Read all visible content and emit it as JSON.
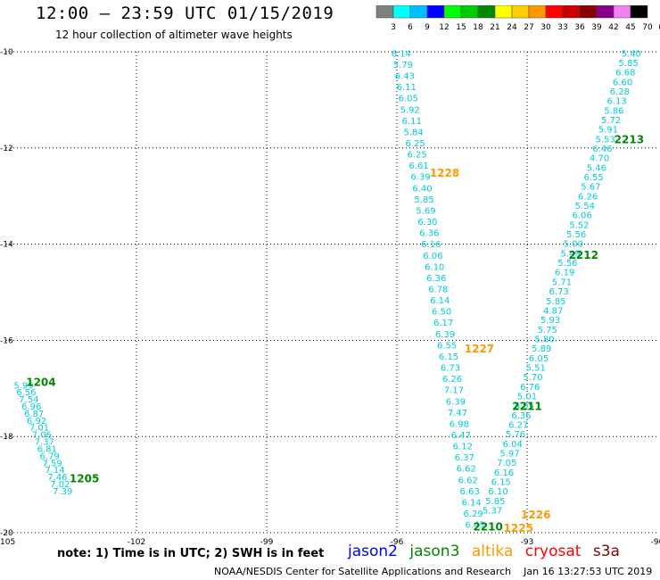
{
  "header": {
    "title": "12:00 – 23:59 UTC 01/15/2019",
    "subtitle": "12 hour collection of altimeter wave heights"
  },
  "colorbar": {
    "labels": [
      "3",
      "6",
      "9",
      "12",
      "15",
      "18",
      "21",
      "24",
      "27",
      "30",
      "33",
      "36",
      "39",
      "42",
      "45",
      "70",
      "(ft)"
    ],
    "colors": [
      "#808080",
      "#00ffff",
      "#00bfff",
      "#0000ff",
      "#00ff00",
      "#00cc00",
      "#008800",
      "#ffff00",
      "#ffcc00",
      "#ff9900",
      "#ff0000",
      "#cc0000",
      "#880000",
      "#880088",
      "#ee82ee",
      "#000000"
    ]
  },
  "footer": {
    "note": "note: 1) Time is in UTC; 2) SWH is in feet",
    "legend": [
      {
        "label": "jason2",
        "color": "#0000ff"
      },
      {
        "label": "jason3",
        "color": "#008800"
      },
      {
        "label": "altika",
        "color": "#ff9900"
      },
      {
        "label": "cryosat",
        "color": "#ff0000"
      },
      {
        "label": "s3a",
        "color": "#880000"
      }
    ],
    "credit": "NOAA/NESDIS Center for Satellite Applications and Research",
    "credit_date": "Jan 16 13:27:53 UTC 2019"
  },
  "chart_data": {
    "type": "scatter",
    "title": "12:00 – 23:59 UTC 01/15/2019",
    "subtitle": "12 hour collection of altimeter wave heights",
    "xlim": [
      -105,
      -90
    ],
    "ylim": [
      -20,
      -10
    ],
    "xticks": [
      -105,
      -102,
      -99,
      -96,
      -93,
      -90
    ],
    "yticks": [
      -20,
      -18,
      -16,
      -14,
      -12,
      -10
    ],
    "grid": true,
    "value_color": "#00ccdd",
    "time_color_jason3": "#008800",
    "time_color_altika": "#ff9900",
    "tracks": [
      {
        "name": "track-west",
        "satellite": "jason3",
        "lon_start": -104.6,
        "lat_start": -17.0,
        "lon_end": -103.7,
        "lat_end": -19.2,
        "values": [
          "5.99",
          "6.56",
          "7.54",
          "6.96",
          "6.87",
          "6.92",
          "7.01",
          "7.06",
          "7.37",
          "6.81",
          "6.79",
          "7.59",
          "7.14",
          "7.46",
          "7.02",
          "7.39"
        ],
        "time_labels": [
          {
            "text": "1204",
            "lon": -104.2,
            "lat": -16.95
          },
          {
            "text": "1205",
            "lon": -103.2,
            "lat": -18.95
          }
        ]
      },
      {
        "name": "track-altika",
        "satellite": "altika",
        "lon_start": -95.9,
        "lat_start": -10.1,
        "lon_end": -94.2,
        "lat_end": -19.9,
        "values": [
          "6.14",
          "5.79",
          "6.43",
          "6.11",
          "6.05",
          "5.92",
          "6.11",
          "5.84",
          "6.25",
          "6.25",
          "6.61",
          "6.39",
          "6.40",
          "5.85",
          "5.69",
          "6.30",
          "6.36",
          "6.16",
          "6.06",
          "6.10",
          "6.36",
          "6.78",
          "6.14",
          "6.50",
          "6.17",
          "6.39",
          "6.55",
          "6.15",
          "6.73",
          "6.26",
          "7.17",
          "6.39",
          "7.47",
          "6.98",
          "6.47",
          "6.12",
          "6.37",
          "6.62",
          "6.62",
          "6.63",
          "6.14",
          "6.29",
          "6.45"
        ],
        "time_labels": [
          {
            "text": "1228",
            "lon": -94.9,
            "lat": -12.6
          },
          {
            "text": "1227",
            "lon": -94.1,
            "lat": -16.25
          },
          {
            "text": "1226",
            "lon": -92.8,
            "lat": -19.7
          },
          {
            "text": "1225",
            "lon": -93.2,
            "lat": -19.98
          }
        ]
      },
      {
        "name": "track-east",
        "satellite": "jason3",
        "lon_start": -90.6,
        "lat_start": -10.1,
        "lon_end": -93.8,
        "lat_end": -19.6,
        "values": [
          "5.40",
          "5.85",
          "6.68",
          "6.60",
          "6.28",
          "6.13",
          "5.86",
          "5.72",
          "5.91",
          "5.53",
          "6.46",
          "4.70",
          "5.46",
          "6.55",
          "5.67",
          "6.26",
          "5.54",
          "6.06",
          "5.52",
          "5.56",
          "5.00",
          "5.49",
          "5.56",
          "6.19",
          "5.71",
          "6.73",
          "5.85",
          "4.87",
          "5.93",
          "5.75",
          "5.80",
          "5.89",
          "6.05",
          "5.51",
          "5.70",
          "6.76",
          "5.01",
          "6.05",
          "6.36",
          "6.27",
          "5.76",
          "6.04",
          "5.97",
          "7.05",
          "6.16",
          "6.15",
          "6.10",
          "5.85",
          "5.37"
        ],
        "time_labels": [
          {
            "text": "2213",
            "lon": -90.65,
            "lat": -11.9
          },
          {
            "text": "2212",
            "lon": -91.7,
            "lat": -14.3
          },
          {
            "text": "2211",
            "lon": -93.0,
            "lat": -17.45
          },
          {
            "text": "2210",
            "lon": -93.9,
            "lat": -19.95
          }
        ]
      }
    ]
  }
}
